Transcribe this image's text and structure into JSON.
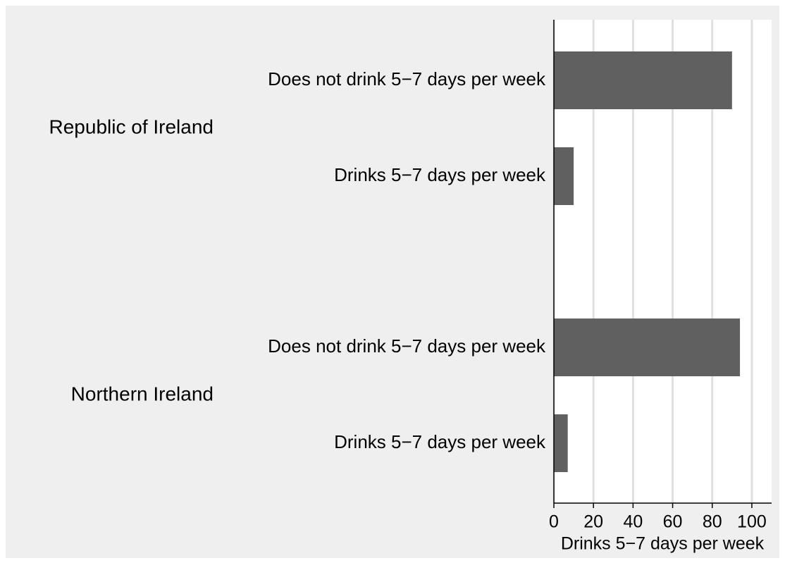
{
  "chart_data": {
    "type": "bar",
    "orientation": "horizontal",
    "groups": [
      {
        "name": "Republic of Ireland",
        "categories": [
          "Does not drink 5−7 days per week",
          "Drinks 5−7 days per week"
        ],
        "values": [
          90,
          10
        ]
      },
      {
        "name": "Northern Ireland",
        "categories": [
          "Does not drink 5−7 days per week",
          "Drinks 5−7 days per week"
        ],
        "values": [
          94,
          7
        ]
      }
    ],
    "color": "#606060",
    "x_label": "Drinks 5−7 days per week",
    "xlim": [
      0,
      110
    ],
    "xticks": [
      0,
      20,
      40,
      60,
      80,
      100
    ],
    "grid": true
  }
}
